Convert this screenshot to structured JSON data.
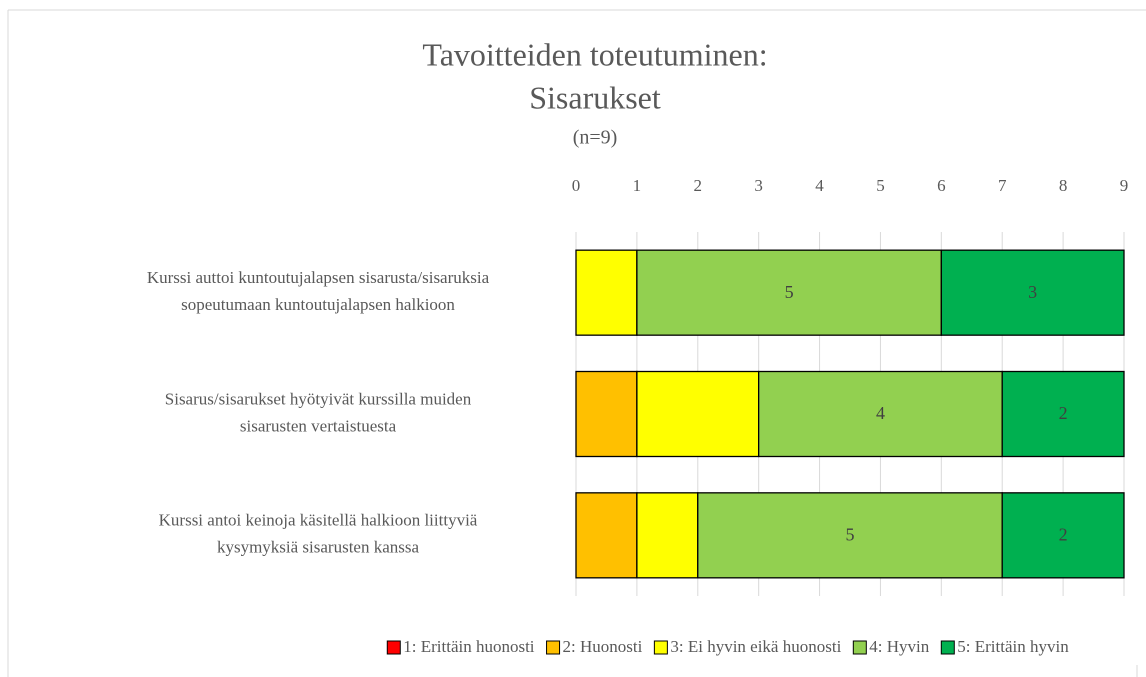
{
  "chart_data": {
    "type": "stacked-barh",
    "title": [
      "Tavoitteiden toteutuminen:",
      "Sisarukset"
    ],
    "subtitle": "(n=9)",
    "categories": [
      [
        "Kurssi auttoi kuntoutujalapsen sisarusta/sisaruksia",
        "sopeutumaan kuntoutujalapsen halkioon"
      ],
      [
        "Sisarus/sisarukset hyötyivät kurssilla muiden",
        "sisarusten vertaistuesta"
      ],
      [
        "Kurssi antoi keinoja käsitellä halkioon liittyviä",
        "kysymyksiä sisarusten kanssa"
      ]
    ],
    "series": [
      {
        "name": "1: Erittäin huonosti",
        "color": "#ff0000",
        "values": [
          0,
          0,
          0
        ],
        "data_labels": false
      },
      {
        "name": "2: Huonosti",
        "color": "#ffc000",
        "values": [
          0,
          1,
          1
        ],
        "data_labels": false
      },
      {
        "name": "3: Ei hyvin eikä huonosti",
        "color": "#ffff00",
        "values": [
          1,
          2,
          1
        ],
        "data_labels": false
      },
      {
        "name": "4: Hyvin",
        "color": "#92d050",
        "values": [
          5,
          4,
          5
        ],
        "data_labels": true
      },
      {
        "name": "5: Erittäin hyvin",
        "color": "#00b050",
        "values": [
          3,
          2,
          2
        ],
        "data_labels": true
      }
    ],
    "xlim": [
      0,
      9
    ],
    "xticks": [
      0,
      1,
      2,
      3,
      4,
      5,
      6,
      7,
      8,
      9
    ],
    "grid": true,
    "legend": "bottom"
  }
}
